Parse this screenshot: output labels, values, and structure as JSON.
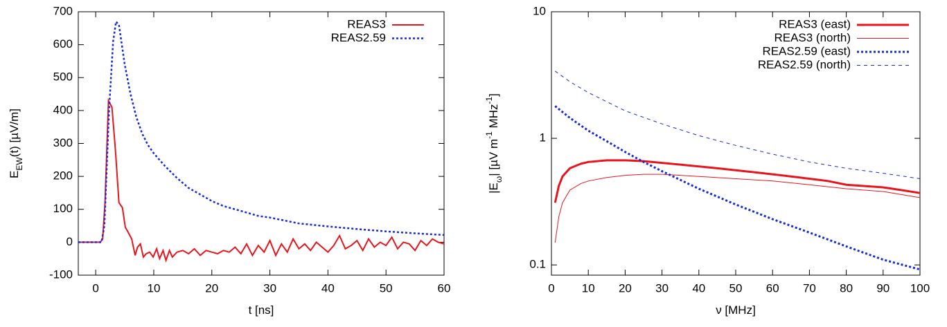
{
  "chart_data": [
    {
      "type": "line",
      "legend": "top-right",
      "log_y": false,
      "xlabel": [
        {
          "text": "t [ns]"
        }
      ],
      "ylabel": [
        {
          "text": "E"
        },
        {
          "text": "EW",
          "sub": true
        },
        {
          "text": "(t) [µV/m]"
        }
      ],
      "xlim": [
        -3,
        60
      ],
      "xticks": [
        0,
        10,
        20,
        30,
        40,
        50,
        60
      ],
      "ylim": [
        -100,
        700
      ],
      "yticks": [
        -100,
        0,
        100,
        200,
        300,
        400,
        500,
        600,
        700
      ],
      "series": [
        {
          "name": "REAS3",
          "color": "#e8141c",
          "dash": "solid",
          "line_width": 2,
          "x": [
            -3,
            -2,
            -1,
            0,
            0.8,
            1.2,
            1.6,
            2.2,
            2.8,
            3.4,
            4,
            4.6,
            5.1,
            5.6,
            6.2,
            6.8,
            7.2,
            7.7,
            8.2,
            8.7,
            9.3,
            9.9,
            10.5,
            11,
            11.6,
            12.1,
            12.7,
            13.2,
            14,
            15,
            16,
            17,
            18,
            19,
            20,
            21,
            22,
            23,
            24,
            25,
            26,
            27,
            28,
            29,
            30,
            31,
            32,
            33,
            34,
            35,
            36,
            37,
            38,
            39,
            40,
            41,
            42,
            43,
            44,
            45,
            46,
            47,
            48,
            49,
            50,
            51,
            52,
            53,
            54,
            55,
            56,
            57,
            58,
            59,
            60
          ],
          "values": [
            0,
            0,
            0,
            0,
            0,
            10,
            120,
            430,
            410,
            280,
            120,
            105,
            45,
            30,
            10,
            -40,
            -15,
            -5,
            -45,
            -35,
            -30,
            -45,
            -20,
            -50,
            -25,
            -55,
            -25,
            -45,
            -30,
            -25,
            -35,
            -20,
            -40,
            -25,
            -30,
            -35,
            -25,
            -30,
            -15,
            -35,
            -5,
            -40,
            -10,
            -30,
            5,
            -40,
            -5,
            -30,
            10,
            -20,
            -5,
            -25,
            0,
            -15,
            -30,
            -10,
            20,
            -20,
            -10,
            5,
            -25,
            10,
            -15,
            0,
            -10,
            15,
            -20,
            0,
            -5,
            -25,
            5,
            -10,
            10,
            0,
            -5
          ]
        },
        {
          "name": "REAS2.59",
          "color": "#1428e0",
          "dash": "dotted",
          "line_width": 2.5,
          "x": [
            -3,
            0,
            1,
            1.5,
            2.3,
            3,
            3.5,
            4,
            4.5,
            5,
            6,
            7,
            8,
            9,
            10,
            12,
            14,
            16,
            18,
            20,
            22,
            25,
            28,
            30,
            35,
            40,
            45,
            50,
            55,
            60
          ],
          "values": [
            0,
            0,
            0,
            50,
            400,
            610,
            670,
            660,
            600,
            540,
            450,
            380,
            330,
            295,
            270,
            230,
            195,
            165,
            145,
            125,
            110,
            95,
            80,
            75,
            57,
            48,
            40,
            33,
            27,
            22
          ]
        }
      ]
    },
    {
      "type": "line",
      "legend": "top-right",
      "log_y": true,
      "xlabel": [
        {
          "text": "ν [MHz]"
        }
      ],
      "ylabel": [
        {
          "text": "|E"
        },
        {
          "text": "ω",
          "sub": true
        },
        {
          "text": "| [µV m"
        },
        {
          "text": "-1",
          "sup": true
        },
        {
          "text": " MHz"
        },
        {
          "text": "-1",
          "sup": true
        },
        {
          "text": "]"
        }
      ],
      "xlim": [
        0,
        100
      ],
      "xticks": [
        0,
        10,
        20,
        30,
        40,
        50,
        60,
        70,
        80,
        90,
        100
      ],
      "ylim": [
        0.083,
        10
      ],
      "yticks": [
        0.1,
        1,
        10
      ],
      "series": [
        {
          "name": "REAS3 (east)",
          "color": "#e8141c",
          "dash": "solid",
          "line_width": 3,
          "x": [
            1,
            2,
            3,
            5,
            8,
            10,
            15,
            20,
            25,
            30,
            35,
            40,
            45,
            50,
            55,
            60,
            65,
            70,
            75,
            80,
            85,
            90,
            95,
            100
          ],
          "values": [
            0.31,
            0.42,
            0.5,
            0.58,
            0.63,
            0.65,
            0.67,
            0.67,
            0.66,
            0.64,
            0.62,
            0.6,
            0.58,
            0.56,
            0.54,
            0.52,
            0.5,
            0.48,
            0.46,
            0.43,
            0.42,
            0.41,
            0.39,
            0.37
          ]
        },
        {
          "name": "REAS3 (north)",
          "color": "#e8141c",
          "dash": "solid",
          "line_width": 1,
          "x": [
            1,
            2,
            3,
            5,
            8,
            10,
            15,
            20,
            25,
            30,
            35,
            40,
            50,
            60,
            70,
            80,
            90,
            100
          ],
          "values": [
            0.15,
            0.24,
            0.31,
            0.39,
            0.44,
            0.46,
            0.49,
            0.51,
            0.52,
            0.52,
            0.51,
            0.5,
            0.48,
            0.46,
            0.43,
            0.4,
            0.38,
            0.34
          ]
        },
        {
          "name": "REAS2.59 (east)",
          "color": "#1428e0",
          "dash": "dotted",
          "line_width": 3,
          "x": [
            1,
            5,
            10,
            15,
            20,
            25,
            30,
            40,
            50,
            60,
            70,
            80,
            90,
            100
          ],
          "values": [
            1.8,
            1.45,
            1.15,
            0.95,
            0.78,
            0.65,
            0.55,
            0.4,
            0.3,
            0.23,
            0.18,
            0.14,
            0.11,
            0.092
          ]
        },
        {
          "name": "REAS2.59 (north)",
          "color": "#1428e0",
          "dash": "dashed",
          "line_width": 1,
          "x": [
            1,
            5,
            10,
            20,
            30,
            40,
            50,
            60,
            70,
            80,
            90,
            100
          ],
          "values": [
            3.4,
            2.8,
            2.3,
            1.65,
            1.3,
            1.05,
            0.88,
            0.75,
            0.65,
            0.58,
            0.53,
            0.48
          ]
        }
      ]
    }
  ]
}
